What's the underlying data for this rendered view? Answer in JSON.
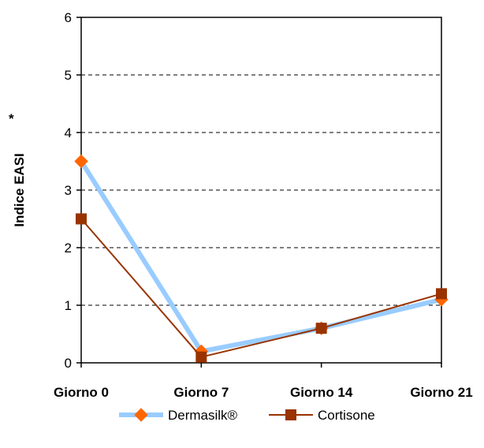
{
  "chart_data": {
    "type": "line",
    "categories": [
      "Giorno 0",
      "Giorno 7",
      "Giorno 14",
      "Giorno 21"
    ],
    "series": [
      {
        "name": "Dermasilk®",
        "values": [
          3.5,
          0.2,
          0.6,
          1.1
        ],
        "line_color": "#99ccff",
        "marker_color": "#ff6600",
        "marker": "diamond"
      },
      {
        "name": "Cortisone",
        "values": [
          2.5,
          0.1,
          0.6,
          1.2
        ],
        "line_color": "#993300",
        "marker_color": "#993300",
        "marker": "square"
      }
    ],
    "ylabel": "Indice EASI",
    "ylabel_note": "*",
    "ylim": [
      0,
      6
    ],
    "yticks": [
      "0",
      "1",
      "2",
      "3",
      "4",
      "5",
      "6"
    ],
    "grid": "dashed horizontal",
    "legend": "bottom"
  }
}
